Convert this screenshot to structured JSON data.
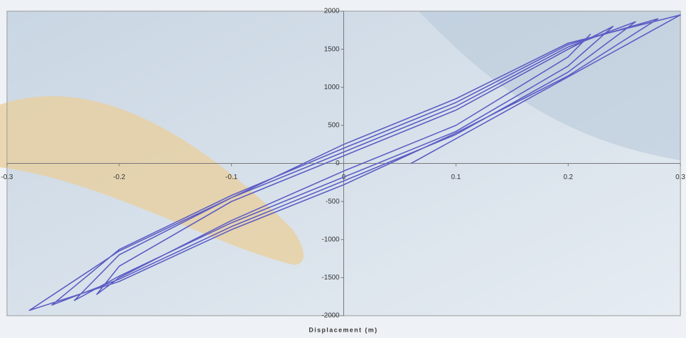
{
  "chart_data": {
    "type": "line",
    "x_label": "Displacement (m)",
    "x": [
      0.06,
      0.3,
      0.2,
      0.1,
      0,
      -0.1,
      -0.2,
      -0.28,
      -0.2,
      -0.1,
      0,
      0.1,
      0.2,
      0.28,
      0.2,
      0.1,
      0,
      -0.1,
      -0.2,
      -0.26,
      -0.2,
      -0.1,
      0,
      0.1,
      0.2,
      0.26,
      0.2,
      0.1,
      0,
      -0.1,
      -0.2,
      -0.24,
      -0.2,
      -0.1,
      0,
      0.1,
      0.2,
      0.24,
      0.2,
      0.1,
      0,
      -0.1,
      -0.2,
      -0.22,
      -0.2,
      -0.1,
      0,
      0.1,
      0.2,
      0.22
    ],
    "values": [
      0,
      1950,
      1580,
      850,
      250,
      -450,
      -1150,
      -1930,
      -1550,
      -870,
      -280,
      400,
      1150,
      1900,
      1560,
      800,
      200,
      -420,
      -1130,
      -1860,
      -1520,
      -830,
      -230,
      380,
      1200,
      1860,
      1530,
      750,
      150,
      -450,
      -1200,
      -1800,
      -1480,
      -780,
      -180,
      420,
      1280,
      1800,
      1500,
      700,
      100,
      -500,
      -1350,
      -1720,
      -1500,
      -750,
      -100,
      500,
      1400,
      1700
    ],
    "color": "#5c5cc4",
    "xlim": [
      -0.3,
      0.3
    ],
    "ylim": [
      -2000,
      2000
    ],
    "xticks": [
      -0.3,
      -0.2,
      -0.1,
      0,
      0.1,
      0.2,
      0.3
    ],
    "yticks": [
      -2000,
      -1500,
      -1000,
      -500,
      0,
      500,
      1000,
      1500,
      2000
    ]
  }
}
